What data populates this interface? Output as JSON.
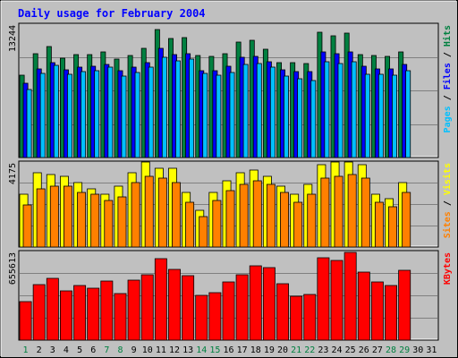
{
  "chart_data": {
    "type": "bar",
    "title": "Daily usage for February 2004",
    "categories": [
      "1",
      "2",
      "3",
      "4",
      "5",
      "6",
      "7",
      "8",
      "9",
      "10",
      "11",
      "12",
      "13",
      "14",
      "15",
      "16",
      "17",
      "18",
      "19",
      "20",
      "21",
      "22",
      "23",
      "24",
      "25",
      "26",
      "27",
      "28",
      "29",
      "30",
      "31"
    ],
    "weekend_days": [
      "1",
      "7",
      "8",
      "14",
      "15",
      "21",
      "22",
      "28",
      "29"
    ],
    "panels": [
      {
        "id": "hits",
        "label_parts": [
          {
            "text": "Pages",
            "color": "#00c0ff"
          },
          {
            "text": " / ",
            "color": "#000000"
          },
          {
            "text": "Files",
            "color": "#0000ff"
          },
          {
            "text": " / ",
            "color": "#000000"
          },
          {
            "text": "Hits",
            "color": "#008040"
          }
        ],
        "max_label": "13244",
        "max": 13244,
        "series": [
          {
            "name": "Hits",
            "color": "#008040",
            "values": [
              8200,
              10400,
              11100,
              9900,
              10300,
              10300,
              10600,
              9800,
              10200,
              10900,
              12800,
              11900,
              12000,
              10200,
              10100,
              10400,
              11500,
              11700,
              10800,
              9500,
              9500,
              9400,
              12500,
              12200,
              12400,
              10300,
              10200,
              10100,
              10600,
              null,
              null
            ]
          },
          {
            "name": "Files",
            "color": "#0000ff",
            "values": [
              7400,
              8900,
              9500,
              8800,
              9000,
              9100,
              9300,
              8700,
              9000,
              9500,
              10900,
              10300,
              10400,
              8700,
              8700,
              9100,
              10000,
              10100,
              9600,
              8800,
              8600,
              8600,
              10600,
              10400,
              10600,
              9100,
              8900,
              8900,
              9300,
              null,
              null
            ]
          },
          {
            "name": "Pages",
            "color": "#00c0ff",
            "values": [
              6800,
              8400,
              9200,
              8300,
              8600,
              8700,
              9000,
              8100,
              8500,
              9000,
              10000,
              9700,
              9800,
              8400,
              8200,
              8500,
              9300,
              9400,
              9000,
              8100,
              7900,
              7700,
              9600,
              9400,
              9600,
              8300,
              8300,
              8200,
              8700,
              null,
              null
            ]
          }
        ]
      },
      {
        "id": "visits",
        "label_parts": [
          {
            "text": "Sites",
            "color": "#ff8000"
          },
          {
            "text": " / ",
            "color": "#000000"
          },
          {
            "text": "Visits",
            "color": "#ffff00"
          }
        ],
        "max_label": "4175",
        "max": 4175,
        "series": [
          {
            "name": "Visits",
            "color": "#ffff00",
            "values": [
              2600,
              3700,
              3600,
              3500,
              3200,
              2900,
              2600,
              3000,
              3700,
              4200,
              3900,
              3900,
              2700,
              1800,
              2700,
              3300,
              3700,
              3800,
              3500,
              3000,
              2600,
              3100,
              4100,
              4200,
              4200,
              4100,
              2600,
              2400,
              3200,
              null,
              null
            ]
          },
          {
            "name": "Sites",
            "color": "#ff8000",
            "values": [
              2100,
              2900,
              3000,
              3000,
              2700,
              2600,
              2300,
              2500,
              3200,
              3500,
              3400,
              3200,
              2200,
              1500,
              2300,
              2800,
              3100,
              3300,
              3100,
              2700,
              2200,
              2600,
              3400,
              3500,
              3600,
              3400,
              2200,
              2000,
              2700,
              null,
              null
            ]
          }
        ]
      },
      {
        "id": "kbytes",
        "label_parts": [
          {
            "text": "KBytes",
            "color": "#ff0000"
          }
        ],
        "max_label": "655613",
        "max": 655613,
        "series": [
          {
            "name": "KBytes",
            "color": "#ff0000",
            "values": [
              290000,
              418000,
              463000,
              368000,
              407000,
              390000,
              440000,
              346000,
              449000,
              491000,
              606000,
              530000,
              480000,
              337000,
              354000,
              433000,
              491000,
              557000,
              539000,
              420000,
              329000,
              338000,
              614000,
              595000,
              653000,
              509000,
              432000,
              410000,
              519000,
              null,
              null
            ]
          }
        ]
      }
    ]
  }
}
